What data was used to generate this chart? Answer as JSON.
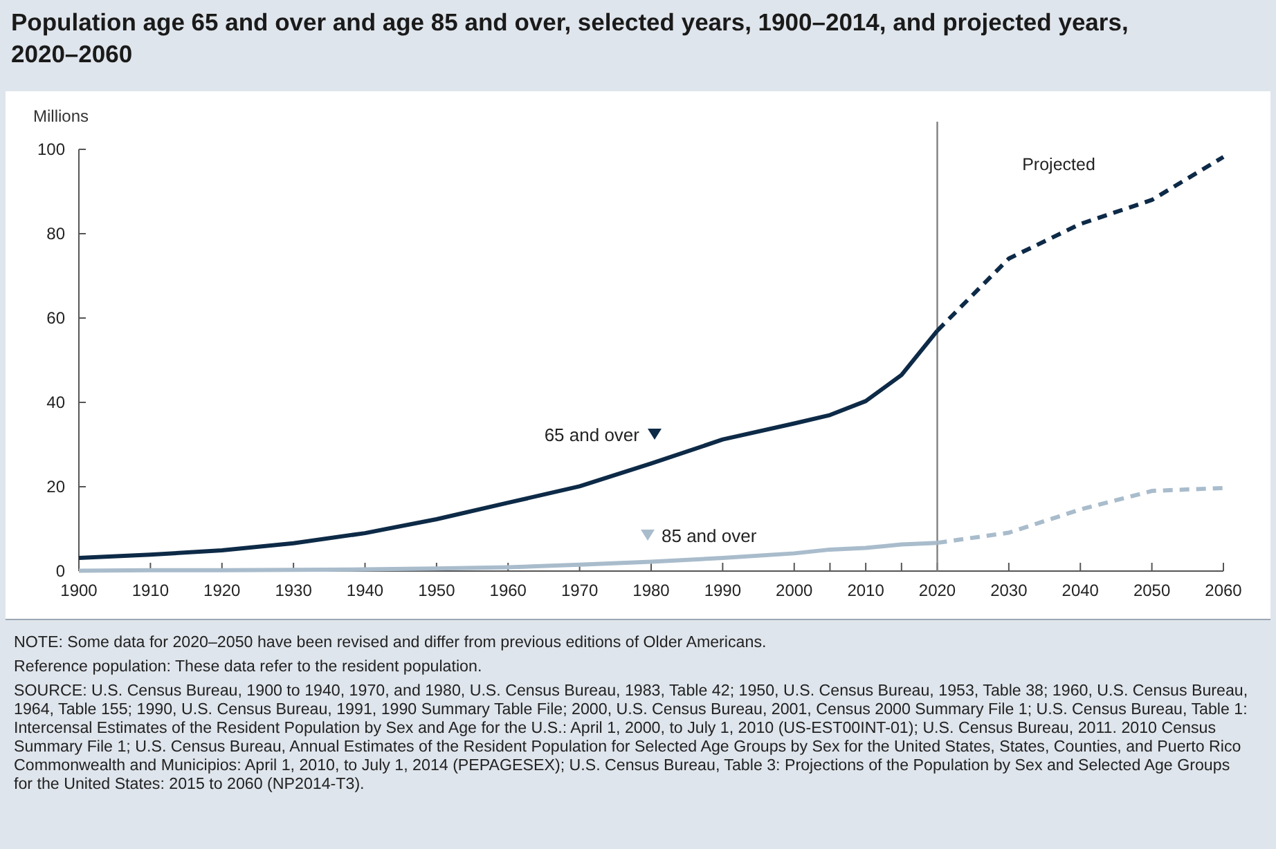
{
  "chart_data": {
    "type": "line",
    "title": "Population age 65 and over and age 85 and over, selected years, 1900–2014, and projected years, 2020–2060",
    "ylabel": "Millions",
    "x": [
      1900,
      1910,
      1920,
      1930,
      1940,
      1950,
      1960,
      1970,
      1980,
      1990,
      2000,
      2005,
      2010,
      2015,
      2020
    ],
    "series": [
      {
        "name": "65 and over",
        "color": "#0d2a47",
        "values": [
          3.1,
          3.9,
          4.9,
          6.6,
          9.0,
          12.3,
          16.2,
          20.1,
          25.5,
          31.2,
          35.0,
          37.0,
          40.3,
          46.5,
          57.0
        ]
      },
      {
        "name": "85 and over",
        "color": "#a9bccc",
        "values": [
          0.1,
          0.2,
          0.2,
          0.3,
          0.4,
          0.6,
          0.9,
          1.5,
          2.2,
          3.1,
          4.2,
          5.1,
          5.5,
          6.3,
          6.7
        ]
      },
      {
        "color": "#0d2a47",
        "line_style": "dashed",
        "x": [
          2020,
          2030,
          2040,
          2050,
          2060
        ],
        "values": [
          57.0,
          74.1,
          82.3,
          88.0,
          98.2
        ]
      },
      {
        "color": "#a9bccc",
        "line_style": "dashed",
        "x": [
          2020,
          2030,
          2040,
          2050,
          2060
        ],
        "values": [
          6.7,
          9.1,
          14.6,
          19.0,
          19.7
        ]
      }
    ],
    "xlim": [
      1900,
      2060
    ],
    "xticks": [
      1900,
      1910,
      1920,
      1930,
      1940,
      1950,
      1960,
      1970,
      1980,
      1990,
      2000,
      {
        "value": 2005,
        "label": null
      },
      2010,
      {
        "value": 2015,
        "label": null
      },
      2020,
      2030,
      2040,
      2050,
      2060
    ],
    "ylim": [
      0,
      100
    ],
    "yticks": [
      0,
      20,
      40,
      60,
      80,
      100
    ],
    "grid": false,
    "legend": "center",
    "line_style": "solid",
    "marker": "none",
    "ref_lines": [
      {
        "axis": "x",
        "value": 2020,
        "color": "#808080"
      }
    ],
    "annotations": [
      "Projected",
      "NOTE: Some data for 2020–2050 have been revised and differ from previous editions of Older Americans.",
      "Reference population: These data refer to the resident population.",
      "SOURCE: U.S. Census Bureau, 1900 to 1940, 1970, and 1980, U.S. Census Bureau, 1983, Table 42; 1950, U.S. Census Bureau, 1953, Table 38; 1960, U.S. Census Bureau, 1964, Table 155; 1990, U.S. Census Bureau, 1991, 1990 Summary Table File; 2000, U.S. Census Bureau, 2001, Census 2000 Summary File 1; U.S. Census Bureau, Table 1: Intercensal Estimates of the Resident Population by Sex and Age for the U.S.: April 1, 2000, to July 1, 2010 (US-EST00INT-01); U.S. Census Bureau, 2011. 2010 Census Summary File 1; U.S. Census Bureau, Annual Estimates of the Resident Population for Selected Age Groups by Sex for the United States, States, Counties, and Puerto Rico Commonwealth and Municipios: April 1, 2010, to July 1, 2014 (PEPAGESEX); U.S. Census Bureau, Table 3: Projections of the Population by Sex and Selected Age Groups for the United States: 2015 to 2060 (NP2014-T3)."
    ]
  }
}
